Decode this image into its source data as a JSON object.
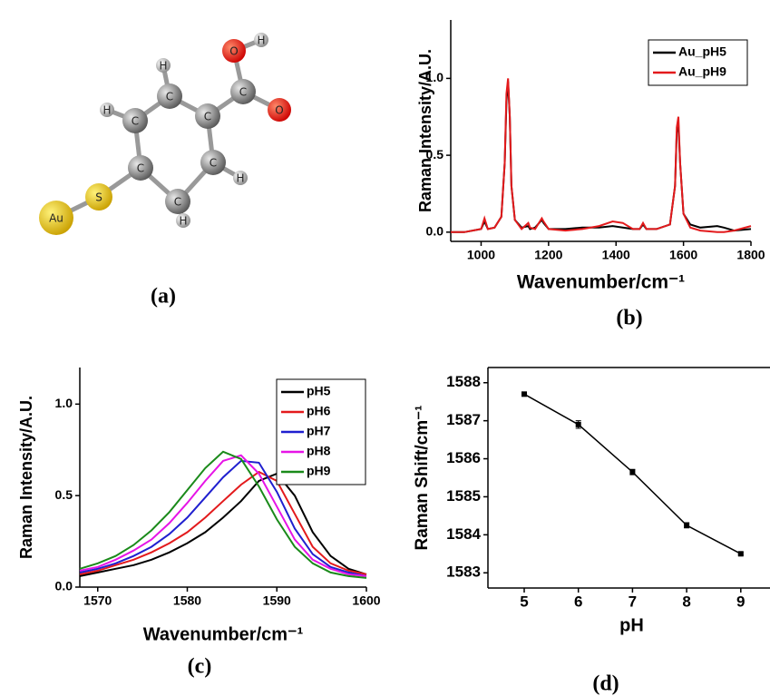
{
  "panel_labels": [
    "(a)",
    "(b)",
    "(c)",
    "(d)"
  ],
  "molecule": {
    "atoms": [
      "O",
      "H",
      "C",
      "O",
      "C",
      "C",
      "C",
      "C",
      "C",
      "C",
      "H",
      "H",
      "H",
      "H",
      "S",
      "Au"
    ]
  },
  "chart_data": [
    {
      "type": "line",
      "xlabel": "Wavenumber/cm⁻¹",
      "ylabel": "Raman Intensity/A.U.",
      "x": [
        910,
        950,
        1000,
        1010,
        1020,
        1040,
        1060,
        1070,
        1075,
        1080,
        1085,
        1090,
        1100,
        1120,
        1140,
        1145,
        1160,
        1180,
        1185,
        1200,
        1250,
        1300,
        1350,
        1390,
        1420,
        1450,
        1470,
        1480,
        1490,
        1520,
        1560,
        1575,
        1580,
        1585,
        1590,
        1600,
        1620,
        1650,
        1700,
        1720,
        1750,
        1800
      ],
      "series": [
        {
          "name": "Au_pH5",
          "color": "#000000",
          "values": [
            0,
            0,
            0.02,
            0.07,
            0.02,
            0.03,
            0.1,
            0.45,
            0.85,
            0.98,
            0.75,
            0.3,
            0.08,
            0.03,
            0.04,
            0.02,
            0.03,
            0.08,
            0.06,
            0.02,
            0.02,
            0.03,
            0.03,
            0.04,
            0.03,
            0.02,
            0.02,
            0.05,
            0.02,
            0.02,
            0.05,
            0.3,
            0.65,
            0.7,
            0.45,
            0.12,
            0.05,
            0.03,
            0.04,
            0.03,
            0.01,
            0.02
          ]
        },
        {
          "name": "Au_pH9",
          "color": "#e31a1c",
          "values": [
            0,
            0,
            0.02,
            0.09,
            0.02,
            0.03,
            0.1,
            0.45,
            0.9,
            1.0,
            0.75,
            0.3,
            0.08,
            0.02,
            0.06,
            0.03,
            0.02,
            0.09,
            0.07,
            0.02,
            0.01,
            0.02,
            0.04,
            0.07,
            0.06,
            0.02,
            0.02,
            0.06,
            0.02,
            0.02,
            0.05,
            0.3,
            0.68,
            0.75,
            0.45,
            0.12,
            0.03,
            0.01,
            0,
            0,
            0.01,
            0.04
          ]
        }
      ],
      "xlim": [
        910,
        1800
      ],
      "xticks": [
        1000,
        1200,
        1400,
        1600,
        1800
      ],
      "ylim": [
        -0.06,
        1.38
      ],
      "yticks": [
        {
          "value": 0,
          "label": "0.0"
        },
        {
          "value": 0.5,
          "label": "0.5"
        },
        {
          "value": 1,
          "label": "1.0"
        }
      ],
      "legend": "upper right",
      "frame": false
    },
    {
      "type": "line",
      "xlabel": "Wavenumber/cm⁻¹",
      "ylabel": "Raman Intensity/A.U.",
      "x": [
        1568,
        1570,
        1572,
        1574,
        1576,
        1578,
        1580,
        1582,
        1584,
        1586,
        1588,
        1590,
        1592,
        1594,
        1596,
        1598,
        1600
      ],
      "series": [
        {
          "name": "pH5",
          "color": "#000000",
          "values": [
            0.06,
            0.08,
            0.1,
            0.12,
            0.15,
            0.19,
            0.24,
            0.3,
            0.38,
            0.47,
            0.58,
            0.62,
            0.5,
            0.3,
            0.17,
            0.1,
            0.07
          ]
        },
        {
          "name": "pH6",
          "color": "#e31a1c",
          "values": [
            0.07,
            0.09,
            0.12,
            0.15,
            0.19,
            0.24,
            0.3,
            0.38,
            0.47,
            0.56,
            0.63,
            0.58,
            0.4,
            0.22,
            0.13,
            0.09,
            0.07
          ]
        },
        {
          "name": "pH7",
          "color": "#1f1fcf",
          "values": [
            0.08,
            0.1,
            0.13,
            0.17,
            0.22,
            0.29,
            0.38,
            0.49,
            0.6,
            0.69,
            0.68,
            0.52,
            0.32,
            0.18,
            0.11,
            0.08,
            0.06
          ]
        },
        {
          "name": "pH8",
          "color": "#e614e6",
          "values": [
            0.09,
            0.11,
            0.15,
            0.2,
            0.26,
            0.35,
            0.46,
            0.58,
            0.69,
            0.72,
            0.62,
            0.44,
            0.26,
            0.15,
            0.1,
            0.07,
            0.06
          ]
        },
        {
          "name": "pH9",
          "color": "#1a8a1a",
          "values": [
            0.1,
            0.13,
            0.17,
            0.23,
            0.31,
            0.41,
            0.53,
            0.65,
            0.74,
            0.7,
            0.55,
            0.37,
            0.22,
            0.13,
            0.08,
            0.06,
            0.05
          ]
        }
      ],
      "xlim": [
        1568,
        1600
      ],
      "xticks": [
        1570,
        1580,
        1590,
        1600
      ],
      "ylim": [
        0,
        1.2
      ],
      "yticks": [
        {
          "value": 0,
          "label": "0.0"
        },
        {
          "value": 0.5,
          "label": "0.5"
        },
        {
          "value": 1,
          "label": "1.0"
        }
      ],
      "legend": "upper right",
      "frame": false
    },
    {
      "type": "line",
      "xlabel": "pH",
      "ylabel": "Raman Shift/cm⁻¹",
      "x": [
        5,
        6,
        7,
        8,
        9
      ],
      "values": [
        1587.7,
        1586.9,
        1585.65,
        1584.25,
        1583.5
      ],
      "errors": [
        0.02,
        0.1,
        0.07,
        0.07,
        0.03
      ],
      "color": "#000000",
      "marker": "square",
      "xlim": [
        4.33,
        9.64
      ],
      "xticks": [
        5,
        6,
        7,
        8,
        9
      ],
      "ylim": [
        1582.6,
        1588.4
      ],
      "yticks": [
        1583,
        1584,
        1585,
        1586,
        1587,
        1588
      ],
      "frame": true
    }
  ]
}
